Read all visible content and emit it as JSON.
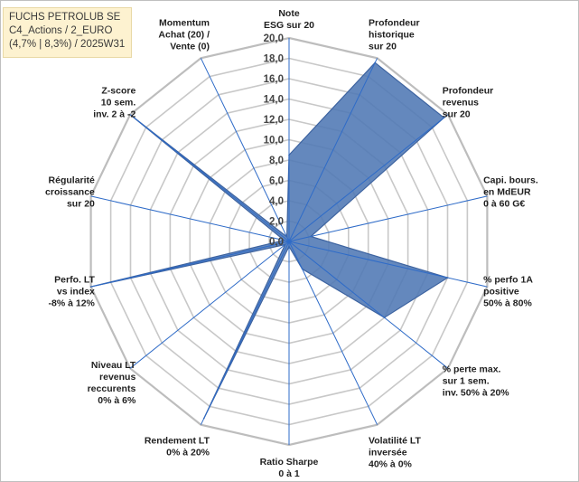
{
  "header": {
    "line1": "FUCHS PETROLUB SE",
    "line2": "C4_Actions / 2_EURO",
    "line3": "(4,7% | 8,3%) / 2025W31"
  },
  "chart_data": {
    "type": "radar",
    "rmax": 20,
    "tick_step": 2,
    "ticks": [
      "0,0",
      "2,0",
      "4,0",
      "6,0",
      "8,0",
      "10,0",
      "12,0",
      "14,0",
      "16,0",
      "18,0",
      "20,0"
    ],
    "grid": true,
    "axes": [
      {
        "label": [
          "Note",
          "ESG sur 20"
        ]
      },
      {
        "label": [
          "Profondeur",
          "historique",
          "sur 20"
        ]
      },
      {
        "label": [
          "Profondeur",
          "revenus",
          "sur 20"
        ]
      },
      {
        "label": [
          "Capi. bours.",
          "en MdEUR",
          "0 à 60 G€"
        ]
      },
      {
        "label": [
          "% perfo 1A",
          "positive",
          "50% à 80%"
        ]
      },
      {
        "label": [
          "% perte max.",
          "sur 1 sem.",
          "inv. 50% à 20%"
        ]
      },
      {
        "label": [
          "Volatilité LT",
          "inversée",
          "40% à 0%"
        ]
      },
      {
        "label": [
          "Ratio Sharpe",
          "0 à 1"
        ]
      },
      {
        "label": [
          "Rendement LT",
          "0% à 20%"
        ]
      },
      {
        "label": [
          "Niveau LT",
          "revenus",
          "reccurents",
          "0% à 6%"
        ]
      },
      {
        "label": [
          "Perfo. LT",
          "vs index",
          "-8% à 12%"
        ]
      },
      {
        "label": [
          "Régularité",
          "croissance",
          "sur 20"
        ]
      },
      {
        "label": [
          "Z-score",
          "10 sem.",
          "inv. 2 à -2"
        ]
      },
      {
        "label": [
          "Momentum",
          "Achat (20) /",
          "Vente (0)"
        ]
      }
    ],
    "series": [
      {
        "values": [
          8.5,
          19.5,
          19.5,
          2.2,
          16.0,
          12.0,
          3.0,
          0.5,
          19.3,
          0.5,
          20.0,
          0.5,
          19.8,
          0.5
        ]
      }
    ],
    "colors": {
      "fill": "#4f78b4",
      "stroke": "#3d63a0",
      "grid": "#c8c8c8",
      "axis": "#2e6bc8"
    }
  }
}
